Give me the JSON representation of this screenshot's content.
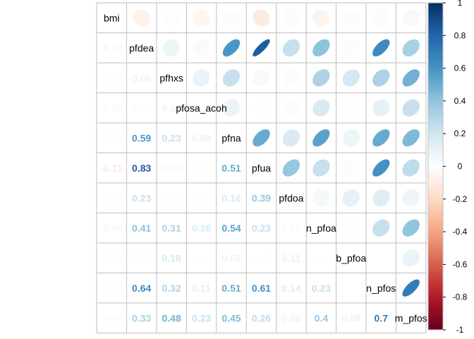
{
  "chart_data": {
    "type": "heatmap",
    "variables": [
      "bmi",
      "pfdea",
      "pfhxs",
      "pfosa_acoh",
      "pfna",
      "pfua",
      "pfdoa",
      "n_pfoa",
      "b_pfoa",
      "n_pfos",
      "m_pfos"
    ],
    "labels": [
      "bmi",
      "pfdea",
      "pfhxs",
      "pfosa_acoh",
      "pfna",
      "pfua",
      "pfdoa",
      "n_pfoa",
      "b_pfoa",
      "n_pfos",
      "m_pfos"
    ],
    "upper_method": "ellipse",
    "lower_method": "number",
    "matrix": [
      [
        1,
        -0.07,
        -0.01,
        -0.05,
        0.02,
        -0.11,
        -0.02,
        -0.06,
        0.02,
        -0.02,
        0.04
      ],
      [
        -0.07,
        1,
        0.08,
        0.03,
        0.59,
        0.83,
        0.23,
        0.41,
        0.02,
        0.64,
        0.33
      ],
      [
        -0.01,
        0.08,
        1,
        0.09,
        0.23,
        0.04,
        0.02,
        0.31,
        0.18,
        0.32,
        0.48
      ],
      [
        -0.05,
        0.03,
        0.09,
        1,
        0.09,
        0.01,
        -0.02,
        0.16,
        0.01,
        0.11,
        0.23
      ],
      [
        0.02,
        0.59,
        0.23,
        0.09,
        1,
        0.51,
        0.16,
        0.54,
        0.08,
        0.51,
        0.45
      ],
      [
        -0.11,
        0.83,
        0.04,
        0.01,
        0.51,
        1,
        0.39,
        0.23,
        -0.02,
        0.61,
        0.26
      ],
      [
        -0.02,
        0.23,
        0.02,
        -0.02,
        0.16,
        0.39,
        1,
        0.05,
        0.11,
        0.14,
        0.08
      ],
      [
        -0.06,
        0.41,
        0.31,
        0.16,
        0.54,
        0.23,
        0.05,
        1,
        0.01,
        0.23,
        0.4
      ],
      [
        0.02,
        0.02,
        0.18,
        0.01,
        0.08,
        -0.02,
        0.11,
        0.01,
        1,
        0.0,
        0.09
      ],
      [
        -0.02,
        0.64,
        0.32,
        0.11,
        0.51,
        0.61,
        0.14,
        0.23,
        0.0,
        1,
        0.7
      ],
      [
        0.04,
        0.33,
        0.48,
        0.23,
        0.45,
        0.26,
        0.08,
        0.4,
        0.09,
        0.7,
        1
      ]
    ],
    "colorbar": {
      "range": [
        -1,
        1
      ],
      "ticks": [
        "1",
        "0.8",
        "0.6",
        "0.4",
        "0.2",
        "0",
        "-0.2",
        "-0.4",
        "-0.6",
        "-0.8",
        "-1"
      ]
    },
    "palette": [
      "#67001F",
      "#B2182B",
      "#D6604D",
      "#F4A582",
      "#FDDBC7",
      "#FFFFFF",
      "#D1E5F0",
      "#92C5DE",
      "#4393C3",
      "#2166AC",
      "#053061"
    ],
    "grid_color": "#bebebe"
  }
}
